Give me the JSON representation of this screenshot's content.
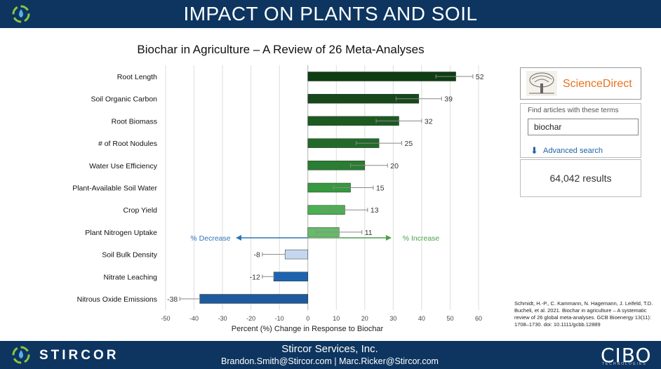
{
  "header": {
    "title": "IMPACT ON PLANTS AND SOIL"
  },
  "chart_data": {
    "type": "bar",
    "orientation": "horizontal",
    "title": "Biochar in Agriculture – A Review of 26 Meta-Analyses",
    "xlabel": "Percent (%) Change in Response to Biochar",
    "ylabel": "",
    "xlim": [
      -50,
      60
    ],
    "xticks": [
      -50,
      -40,
      -30,
      -20,
      -10,
      0,
      10,
      20,
      30,
      40,
      50,
      60
    ],
    "grid": true,
    "categories": [
      "Root Length",
      "Soil Organic Carbon",
      "Root Biomass",
      "# of Root Nodules",
      "Water Use Efficiency",
      "Plant-Available Soil Water",
      "Crop Yield",
      "Plant Nitrogen Uptake",
      "Soil Bulk Density",
      "Nitrate Leaching",
      "Nitrous Oxide Emissions"
    ],
    "values": [
      52,
      39,
      32,
      25,
      20,
      15,
      13,
      11,
      -8,
      -12,
      -38
    ],
    "data_labels": [
      "52",
      "39",
      "32",
      "25",
      "20",
      "15",
      "13",
      "11",
      "-8",
      "-12",
      "-38"
    ],
    "error_low": [
      45,
      31,
      24,
      17,
      15,
      9,
      5,
      3,
      -16,
      -16,
      -45
    ],
    "error_high": [
      58,
      47,
      40,
      33,
      28,
      23,
      21,
      19,
      -8,
      -12,
      -38
    ],
    "bar_colors": [
      "#0f3d12",
      "#17471b",
      "#1d5a22",
      "#22692a",
      "#2a7d32",
      "#37983f",
      "#4caf50",
      "#66bb6a",
      "#c5d7f0",
      "#1f63b0",
      "#1f5a9e"
    ],
    "annotations": {
      "decrease": {
        "label": "% Decrease",
        "color": "#2e75b6"
      },
      "increase": {
        "label": "% Increase",
        "color": "#4aa04a"
      }
    }
  },
  "sciencedirect": {
    "logo": "ScienceDirect",
    "find_label": "Find articles with these terms",
    "search_value": "biochar",
    "advanced": "Advanced search",
    "results": "64,042 results"
  },
  "citation": "Schmidt, H.-P., C. Kammann, N. Hagemann, J. Leifeld, T.D. Bucheli, et al. 2021. Biochar in agriculture – A systematic review of 26 global meta-analyses. GCB Bioenergy 13(11): 1708–1730. doi: 10.1111/gcbb.12889",
  "footer": {
    "brand": "STIRCOR",
    "company": "Stircor Services, Inc.",
    "contact": "Brandon.Smith@Stircor.com | Marc.Ricker@Stircor.com",
    "logo_right": "CIBO",
    "logo_right_sub": "TECHNOLOGIES"
  },
  "colors": {
    "navy": "#0d3560",
    "sd_orange": "#e9711c",
    "link_blue": "#1f63a6"
  }
}
